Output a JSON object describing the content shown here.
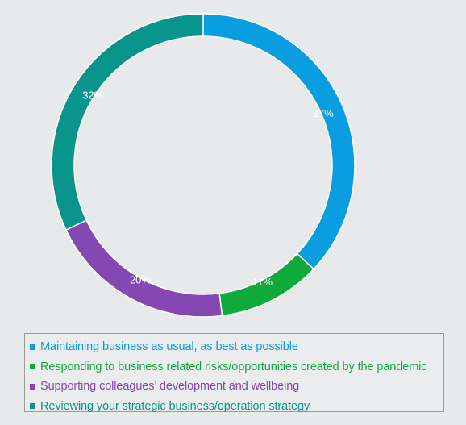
{
  "chart_data": {
    "type": "pie",
    "donut": true,
    "categories": [
      "Maintaining business as usual, as best as possible",
      "Responding to business related risks/opportunities created by the pandemic",
      "Supporting colleagues’ development and wellbeing",
      "Reviewing your strategic business/operation strategy"
    ],
    "values": [
      37,
      11,
      20,
      32
    ],
    "data_labels": [
      "37%",
      "11%",
      "20%",
      "32%"
    ],
    "colors": [
      "#0a9de0",
      "#0faa3c",
      "#8547b2",
      "#0a958c"
    ],
    "legend_placement": "bottom",
    "title": ""
  }
}
